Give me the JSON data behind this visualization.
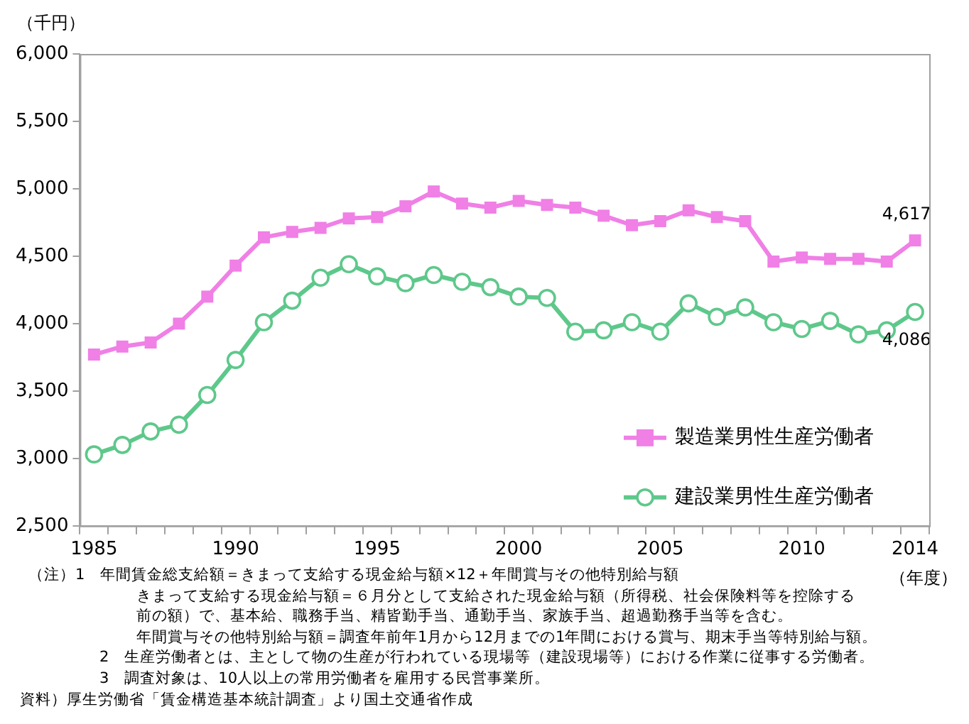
{
  "chart_data": {
    "type": "line",
    "ylabel": "（千円）",
    "xlabel": "（年度）",
    "categories": [
      "1985",
      null,
      null,
      null,
      null,
      "1990",
      null,
      null,
      null,
      null,
      "1995",
      null,
      null,
      null,
      null,
      "2000",
      null,
      null,
      null,
      null,
      "2005",
      null,
      null,
      null,
      null,
      "2010",
      null,
      null,
      null,
      "2014"
    ],
    "series": [
      {
        "name": "製造業男性生産労働者",
        "color": "#f07fe6",
        "marker": "square",
        "values": [
          3770,
          3830,
          3860,
          4000,
          4200,
          4430,
          4640,
          4680,
          4710,
          4780,
          4790,
          4870,
          4980,
          4890,
          4860,
          4910,
          4880,
          4860,
          4800,
          4730,
          4760,
          4840,
          4790,
          4760,
          4460,
          4490,
          4480,
          4480,
          4460,
          4617
        ],
        "value_labels": [
          null,
          null,
          null,
          null,
          null,
          null,
          null,
          null,
          null,
          null,
          null,
          null,
          null,
          null,
          null,
          null,
          null,
          null,
          null,
          null,
          null,
          null,
          null,
          null,
          null,
          null,
          null,
          null,
          null,
          "4,617"
        ]
      },
      {
        "name": "建設業男性生産労働者",
        "color": "#5ec88b",
        "marker": "circle",
        "values": [
          3030,
          3100,
          3200,
          3250,
          3470,
          3730,
          4010,
          4170,
          4340,
          4440,
          4350,
          4300,
          4360,
          4310,
          4270,
          4200,
          4190,
          3940,
          3950,
          4010,
          3940,
          4150,
          4050,
          4120,
          4010,
          3960,
          4020,
          3920,
          3950,
          4086
        ],
        "value_labels": [
          null,
          null,
          null,
          null,
          null,
          null,
          null,
          null,
          null,
          null,
          null,
          null,
          null,
          null,
          null,
          null,
          null,
          null,
          null,
          null,
          null,
          null,
          null,
          null,
          null,
          null,
          null,
          null,
          null,
          "4,086"
        ]
      }
    ],
    "ylim": [
      2500,
      6000
    ],
    "yticks": [
      {
        "value": 2500,
        "label": "2,500"
      },
      {
        "value": 3000,
        "label": "3,000"
      },
      {
        "value": 3500,
        "label": "3,500"
      },
      {
        "value": 4000,
        "label": "4,000"
      },
      {
        "value": 4500,
        "label": "4,500"
      },
      {
        "value": 5000,
        "label": "5,000"
      },
      {
        "value": 5500,
        "label": "5,500"
      },
      {
        "value": 6000,
        "label": "6,000"
      }
    ],
    "grid": false,
    "legend": "bottom right",
    "line_style": "solid",
    "annotations": [
      "（注）1　年間賃金総支給額＝きまって支給する現金給与額×12＋年間賞与その他特別給与額",
      "きまって支給する現金給与額＝６月分として支給された現金給与額（所得税、社会保険料等を控除する",
      "前の額）で、基本給、職務手当、精皆勤手当、通勤手当、家族手当、超過勤務手当等を含む。",
      "年間賞与その他特別給与額＝調査年前年1月から12月までの1年間における賞与、期末手当等特別給与額。",
      "2　生産労働者とは、主として物の生産が行われている現場等（建設現場等）における作業に従事する労働者。",
      "3　調査対象は、10人以上の常用労働者を雇用する民営事業所。",
      "資料）厚生労働省「賃金構造基本統計調査」より国土交通省作成"
    ]
  }
}
